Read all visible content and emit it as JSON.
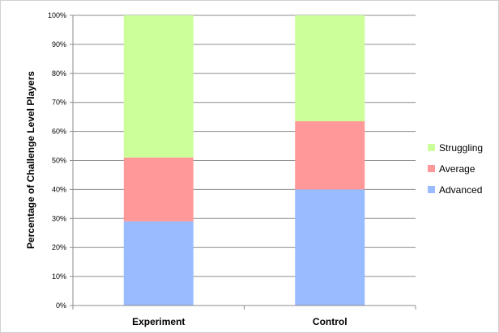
{
  "chart_data": {
    "type": "bar",
    "stacked": true,
    "title": "",
    "xlabel": "",
    "ylabel": "Percentage of Challenge Level Players",
    "ylim": [
      0,
      100
    ],
    "yticks": [
      "0%",
      "10%",
      "20%",
      "30%",
      "40%",
      "50%",
      "60%",
      "70%",
      "80%",
      "90%",
      "100%"
    ],
    "grid": true,
    "legend_position": "right",
    "categories": [
      "Experiment",
      "Control"
    ],
    "series": [
      {
        "name": "Advanced",
        "values": [
          29,
          40
        ],
        "color": "#99bbff"
      },
      {
        "name": "Average",
        "values": [
          22,
          23.5
        ],
        "color": "#ff9999"
      },
      {
        "name": "Struggling",
        "values": [
          49,
          36.5
        ],
        "color": "#ccff99"
      }
    ],
    "legend_order": [
      "Struggling",
      "Average",
      "Advanced"
    ]
  }
}
